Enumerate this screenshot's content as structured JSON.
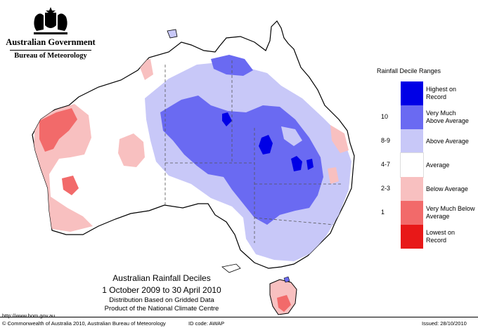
{
  "header": {
    "government": "Australian Government",
    "bureau": "Bureau of Meteorology"
  },
  "legend": {
    "title": "Rainfall Decile Ranges",
    "items": [
      {
        "range": "",
        "label": "Highest on Record",
        "color": "#0000e6"
      },
      {
        "range": "10",
        "label": "Very Much Above Average",
        "color": "#6a6af2"
      },
      {
        "range": "8-9",
        "label": "Above Average",
        "color": "#c8c8f8"
      },
      {
        "range": "4-7",
        "label": "Average",
        "color": "#ffffff"
      },
      {
        "range": "2-3",
        "label": "Below Average",
        "color": "#f8c0c0"
      },
      {
        "range": "1",
        "label": "Very Much Below Average",
        "color": "#f26a6a"
      },
      {
        "range": "",
        "label": "Lowest on Record",
        "color": "#e81818"
      }
    ]
  },
  "map_title": {
    "line1": "Australian Rainfall Deciles",
    "line2": "1 October 2009 to 30 April 2010",
    "line3": "Distribution Based on Gridded Data",
    "line4": "Product of the National Climate Centre"
  },
  "footer": {
    "url": "http://www.bom.gov.au",
    "copyright": "© Commonwealth of Australia 2010, Australian Bureau of Meteorology",
    "id_code": "ID code: AWAP",
    "issued": "Issued: 28/10/2010"
  }
}
